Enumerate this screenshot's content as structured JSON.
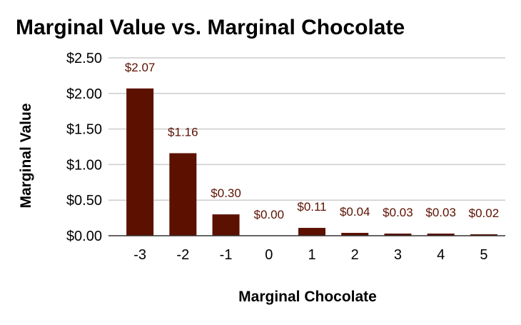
{
  "chart_data": {
    "type": "bar",
    "title": "Marginal Value vs. Marginal Chocolate",
    "xlabel": "Marginal Chocolate",
    "ylabel": "Marginal Value",
    "categories": [
      "-3",
      "-2",
      "-1",
      "0",
      "1",
      "2",
      "3",
      "4",
      "5"
    ],
    "values": [
      2.07,
      1.16,
      0.3,
      0.0,
      0.11,
      0.04,
      0.03,
      0.03,
      0.02
    ],
    "data_labels": [
      "$2.07",
      "$1.16",
      "$0.30",
      "$0.00",
      "$0.11",
      "$0.04",
      "$0.03",
      "$0.03",
      "$0.02"
    ],
    "ylim": [
      0,
      2.5
    ],
    "yticks": [
      0,
      0.5,
      1.0,
      1.5,
      2.0,
      2.5
    ],
    "ytick_labels": [
      "$0.00",
      "$0.50",
      "$1.00",
      "$1.50",
      "$2.00",
      "$2.50"
    ],
    "grid": true,
    "legend": "none",
    "colors": {
      "bar": "#5c1100",
      "data_label": "#5c1100",
      "grid": "#cccccc",
      "baseline": "#333333"
    }
  }
}
